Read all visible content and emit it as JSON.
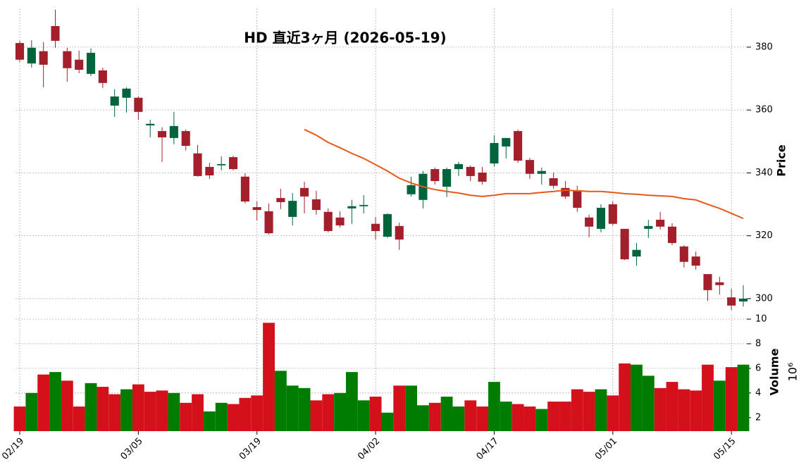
{
  "chart_data": {
    "type": "candlestick",
    "title": "HD  直近3ヶ月 (2026-05-19)",
    "ylabel": "Price",
    "categories": [
      "02/19",
      null,
      null,
      null,
      null,
      null,
      null,
      null,
      null,
      null,
      "03/05",
      null,
      null,
      null,
      null,
      null,
      null,
      null,
      null,
      null,
      "03/19",
      null,
      null,
      null,
      null,
      null,
      null,
      null,
      null,
      null,
      "04/02",
      null,
      null,
      null,
      null,
      null,
      null,
      null,
      null,
      null,
      "04/17",
      null,
      null,
      null,
      null,
      null,
      null,
      null,
      null,
      null,
      "05/01",
      null,
      null,
      null,
      null,
      null,
      null,
      null,
      null,
      null,
      "05/15",
      null
    ],
    "open": [
      381.3,
      374.8,
      378.7,
      386.7,
      378.7,
      376.0,
      371.5,
      372.6,
      361.4,
      363.9,
      363.9,
      355.1,
      353.3,
      351.1,
      353.3,
      346.2,
      341.9,
      342.4,
      345.0,
      338.8,
      329.1,
      327.8,
      332.0,
      326.0,
      335.2,
      331.6,
      327.6,
      325.8,
      328.7,
      329.4,
      323.8,
      319.7,
      323.1,
      333.2,
      331.4,
      341.2,
      335.6,
      341.2,
      341.9,
      340.1,
      343.0,
      348.4,
      353.3,
      344.1,
      339.7,
      338.3,
      335.2,
      334.5,
      325.8,
      322.2,
      330.0,
      322.2,
      313.4,
      322.2,
      325.1,
      322.9,
      316.6,
      313.4,
      307.8,
      305.2,
      300.4,
      299.1
    ],
    "high": [
      382.0,
      382.2,
      381.6,
      391.9,
      379.8,
      378.9,
      379.6,
      373.5,
      366.6,
      367.2,
      364.3,
      356.9,
      354.5,
      359.4,
      353.8,
      348.9,
      343.2,
      345.3,
      345.5,
      339.9,
      330.9,
      330.3,
      334.9,
      333.6,
      337.2,
      334.3,
      328.7,
      327.8,
      331.4,
      332.9,
      326.0,
      327.1,
      324.2,
      338.8,
      340.6,
      341.7,
      341.7,
      343.5,
      342.4,
      341.9,
      352.0,
      351.1,
      353.8,
      344.8,
      341.7,
      340.1,
      337.4,
      335.9,
      326.7,
      330.0,
      330.9,
      322.2,
      317.7,
      325.1,
      327.6,
      324.0,
      317.0,
      315.0,
      307.8,
      307.0,
      303.1,
      304.3
    ],
    "low": [
      375.3,
      373.5,
      367.2,
      379.8,
      369.0,
      371.7,
      370.8,
      367.0,
      357.8,
      359.2,
      356.9,
      351.3,
      343.5,
      349.1,
      347.1,
      338.8,
      338.1,
      340.8,
      340.8,
      330.3,
      324.9,
      320.4,
      328.5,
      323.3,
      327.1,
      326.7,
      321.1,
      322.6,
      323.8,
      327.1,
      318.8,
      319.3,
      315.5,
      332.5,
      328.7,
      336.3,
      332.3,
      339.0,
      337.4,
      336.3,
      342.1,
      344.6,
      343.2,
      338.1,
      336.3,
      335.0,
      331.8,
      327.6,
      319.5,
      321.1,
      323.3,
      312.3,
      310.5,
      319.3,
      322.0,
      317.0,
      309.9,
      309.2,
      299.3,
      301.3,
      296.4,
      297.5
    ],
    "close": [
      376.0,
      379.8,
      374.4,
      382.0,
      373.3,
      372.8,
      378.2,
      368.6,
      364.3,
      366.8,
      359.4,
      355.6,
      351.3,
      354.9,
      348.6,
      339.0,
      339.2,
      342.8,
      341.2,
      330.9,
      328.2,
      320.8,
      330.7,
      331.1,
      332.5,
      328.2,
      321.5,
      323.3,
      329.4,
      329.8,
      321.5,
      326.9,
      318.8,
      336.1,
      339.7,
      337.4,
      341.2,
      342.8,
      339.0,
      337.2,
      349.5,
      351.1,
      343.9,
      339.7,
      340.6,
      335.9,
      332.5,
      328.9,
      322.9,
      328.9,
      323.8,
      312.5,
      315.5,
      323.1,
      322.9,
      317.7,
      311.7,
      310.5,
      302.7,
      304.3,
      297.8,
      300.0
    ],
    "up_color": "#00643c",
    "down_color": "#a31f2b",
    "ylim": [
      295.5,
      392.3
    ],
    "yticks": [
      300,
      320,
      340,
      360,
      380
    ],
    "grid": true,
    "moving_average": {
      "color": "#e8581a",
      "values": [
        null,
        null,
        null,
        null,
        null,
        null,
        null,
        null,
        null,
        null,
        null,
        null,
        null,
        null,
        null,
        null,
        null,
        null,
        null,
        null,
        null,
        null,
        null,
        null,
        353.8,
        352.0,
        349.7,
        348.0,
        346.2,
        344.6,
        342.6,
        340.6,
        338.3,
        336.8,
        335.6,
        334.7,
        334.1,
        333.6,
        332.9,
        332.5,
        332.9,
        333.4,
        333.4,
        333.4,
        333.8,
        334.1,
        334.5,
        334.3,
        334.1,
        334.1,
        333.8,
        333.4,
        333.2,
        332.9,
        332.7,
        332.5,
        331.8,
        331.4,
        330.0,
        328.7,
        327.1,
        325.5
      ]
    },
    "volume": {
      "label": "Volume",
      "offset_label": "10⁶",
      "values": [
        2.9,
        4.0,
        5.5,
        5.7,
        5.0,
        2.9,
        4.8,
        4.5,
        3.9,
        4.3,
        4.7,
        4.1,
        4.2,
        4.0,
        3.2,
        3.9,
        2.5,
        3.2,
        3.1,
        3.6,
        3.8,
        9.7,
        5.8,
        4.6,
        4.4,
        3.4,
        3.9,
        4.0,
        5.7,
        3.4,
        3.7,
        2.4,
        4.6,
        4.6,
        3.0,
        3.2,
        3.7,
        2.9,
        3.4,
        2.9,
        4.9,
        3.3,
        3.1,
        2.9,
        2.7,
        3.3,
        3.3,
        4.3,
        4.1,
        4.3,
        3.8,
        6.4,
        6.3,
        5.4,
        4.4,
        4.9,
        4.3,
        4.2,
        6.3,
        5.0,
        6.1,
        6.3
      ],
      "up_color": "#007c00",
      "down_color": "#d4111b",
      "ylim": [
        0.9,
        10.4
      ],
      "yticks": [
        2,
        4,
        6,
        8,
        10
      ]
    }
  }
}
